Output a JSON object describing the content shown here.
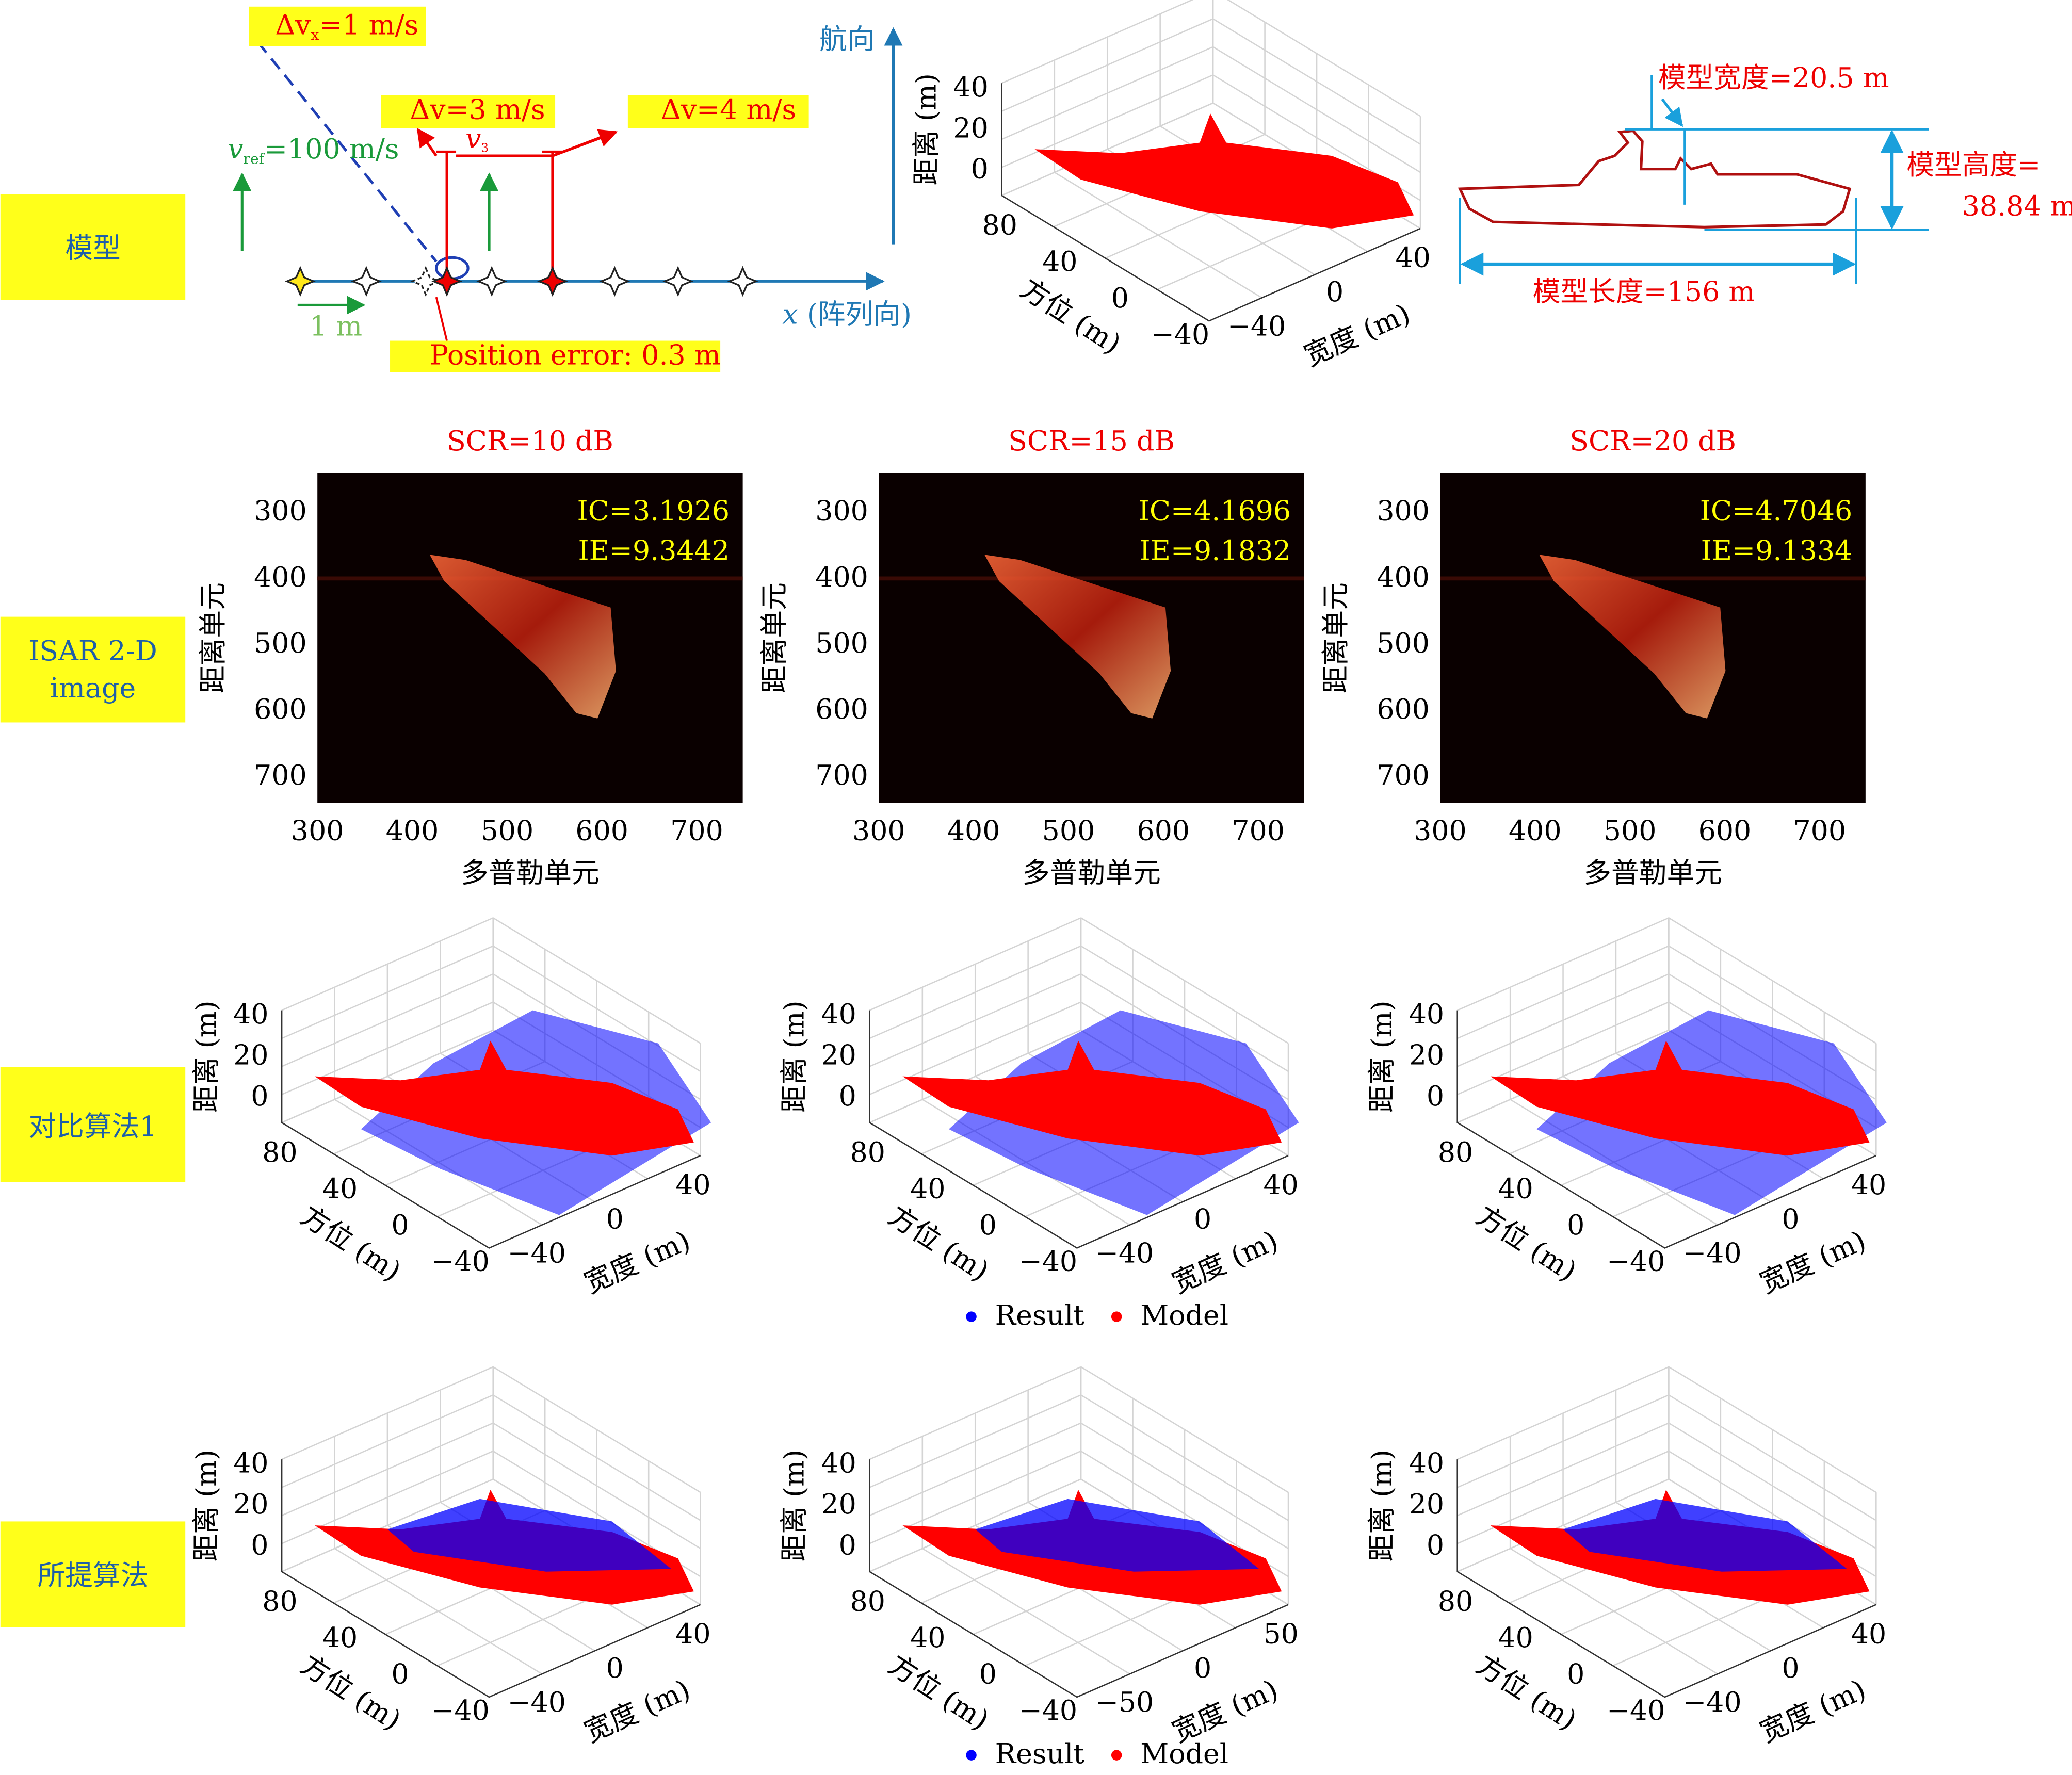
{
  "row_labels": [
    "模型",
    "ISAR 2-D image",
    "对比算法1",
    "所提算法"
  ],
  "geometry_diagram": {
    "dvx": {
      "symbol": "Δv",
      "sub": "x",
      "text": "=1 m/s"
    },
    "dv3": "Δv=3 m/s",
    "dv4": "Δv=4 m/s",
    "vref": {
      "symbol": "v",
      "sub": "ref",
      "text": "=100 m/s"
    },
    "v3": {
      "symbol": "v",
      "sub": "3"
    },
    "heading": "航向",
    "array_axis": {
      "symbol": "x",
      "text": " (阵列向)"
    },
    "spacing": "1 m",
    "position_error": "Position error: 0.3 m"
  },
  "model_3d": {
    "zlabel": "距离 (m)",
    "azimuth_label": "方位 (m)",
    "width_label": "宽度 (m)",
    "zticks": [
      0,
      20,
      40
    ],
    "azimuth_ticks": [
      80,
      40,
      0,
      {
        "value": -40,
        "label": "−40"
      }
    ],
    "width_ticks": [
      {
        "value": -40,
        "label": "−40"
      },
      0,
      40
    ]
  },
  "ship_dimensions": {
    "width": "模型宽度=20.5 m",
    "height": "模型高度=",
    "height_value": "38.84 m",
    "length": "模型长度=156 m"
  },
  "isar": {
    "xlabel": "多普勒单元",
    "ylabel": "距离单元",
    "xticks": [
      300,
      400,
      500,
      600,
      700
    ],
    "yticks": [
      300,
      400,
      500,
      600,
      700
    ],
    "panels": [
      {
        "title": "SCR=10 dB",
        "ic": "IC=3.1926",
        "ie": "IE=9.3442"
      },
      {
        "title": "SCR=15 dB",
        "ic": "IC=4.1696",
        "ie": "IE=9.1832"
      },
      {
        "title": "SCR=20 dB",
        "ic": "IC=4.7046",
        "ie": "IE=9.1334"
      }
    ]
  },
  "comparison": {
    "legend": [
      {
        "name": "Result",
        "color": "#0000ff"
      },
      {
        "name": "Model",
        "color": "#ff0000"
      }
    ],
    "panels": [
      {
        "zlabel": "距离 (m)",
        "azimuth_label": "方位 (m)",
        "width_label": "宽度 (m)",
        "zticks": [
          0,
          20,
          40
        ],
        "azimuth_ticks": [
          80,
          40,
          0,
          {
            "value": -40,
            "label": "−40"
          }
        ],
        "width_ticks": [
          {
            "value": -40,
            "label": "−40"
          },
          0,
          40
        ]
      },
      {
        "zlabel": "距离 (m)",
        "azimuth_label": "方位 (m)",
        "width_label": "宽度 (m)",
        "zticks": [
          0,
          20,
          40
        ],
        "azimuth_ticks": [
          80,
          40,
          0,
          {
            "value": -40,
            "label": "−40"
          }
        ],
        "width_ticks": [
          {
            "value": -40,
            "label": "−40"
          },
          0,
          40
        ]
      },
      {
        "zlabel": "距离 (m)",
        "azimuth_label": "方位 (m)",
        "width_label": "宽度 (m)",
        "zticks": [
          0,
          20,
          40
        ],
        "azimuth_ticks": [
          80,
          40,
          0,
          {
            "value": -40,
            "label": "−40"
          }
        ],
        "width_ticks": [
          {
            "value": -40,
            "label": "−40"
          },
          0,
          40
        ]
      }
    ]
  },
  "proposed": {
    "legend": [
      {
        "name": "Result",
        "color": "#0000ff"
      },
      {
        "name": "Model",
        "color": "#ff0000"
      }
    ],
    "panels": [
      {
        "zlabel": "距离 (m)",
        "azimuth_label": "方位 (m)",
        "width_label": "宽度 (m)",
        "zticks": [
          0,
          20,
          40
        ],
        "azimuth_ticks": [
          80,
          40,
          0,
          {
            "value": -40,
            "label": "−40"
          }
        ],
        "width_ticks": [
          {
            "value": -40,
            "label": "−40"
          },
          0,
          40
        ]
      },
      {
        "zlabel": "距离 (m)",
        "azimuth_label": "方位 (m)",
        "width_label": "宽度 (m)",
        "zticks": [
          0,
          20,
          40
        ],
        "azimuth_ticks": [
          80,
          40,
          0,
          {
            "value": -40,
            "label": "−40"
          }
        ],
        "width_ticks": [
          {
            "value": -50,
            "label": "−50"
          },
          0,
          50
        ]
      },
      {
        "zlabel": "距离 (m)",
        "azimuth_label": "方位 (m)",
        "width_label": "宽度 (m)",
        "zticks": [
          0,
          20,
          40
        ],
        "azimuth_ticks": [
          80,
          40,
          0,
          {
            "value": -40,
            "label": "−40"
          }
        ],
        "width_ticks": [
          {
            "value": -40,
            "label": "−40"
          },
          0,
          40
        ]
      }
    ]
  }
}
